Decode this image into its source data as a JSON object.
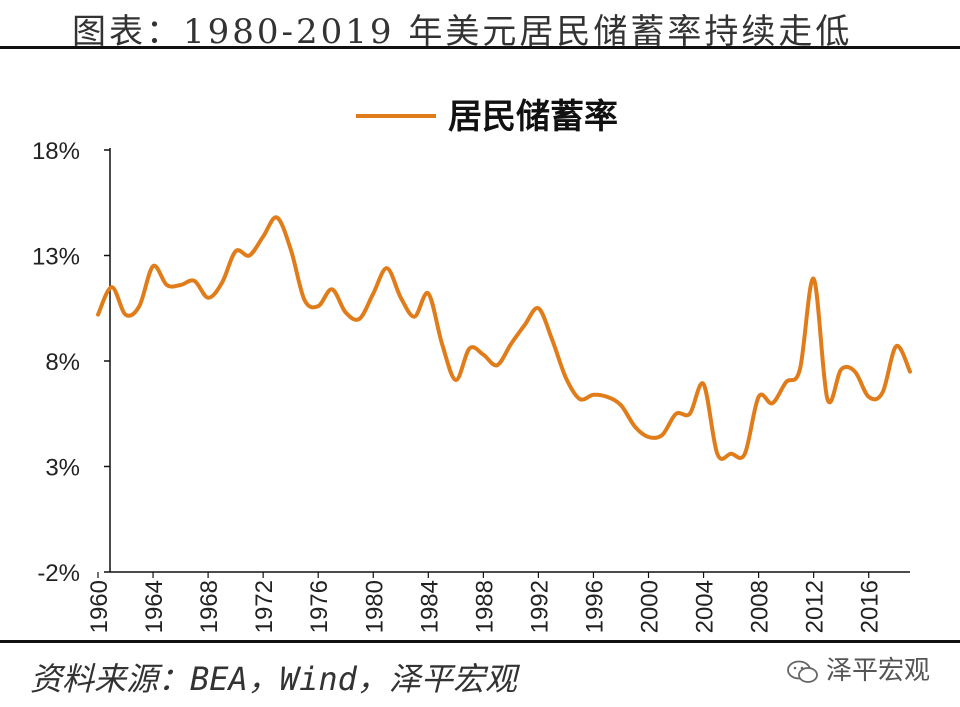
{
  "title": "图表：1980-2019 年美元居民储蓄率持续走低",
  "source": "资料来源：BEA，Wind，泽平宏观",
  "watermark": "泽平宏观",
  "colors": {
    "series": "#E07D1A",
    "text": "#222222",
    "axis": "#111111"
  },
  "chart_data": {
    "type": "line",
    "title": "",
    "xlabel": "",
    "ylabel": "",
    "ylim": [
      -2,
      18
    ],
    "xlim": [
      1960,
      2019
    ],
    "grid": false,
    "legend": "top-center",
    "y_ticks": [
      {
        "value": 18,
        "label": "18%"
      },
      {
        "value": 13,
        "label": "13%"
      },
      {
        "value": 8,
        "label": "8%"
      },
      {
        "value": 3,
        "label": "3%"
      },
      {
        "value": -2,
        "label": "-2%"
      }
    ],
    "x_ticks": [
      "1960",
      "1964",
      "1968",
      "1972",
      "1976",
      "1980",
      "1984",
      "1988",
      "1992",
      "1996",
      "2000",
      "2004",
      "2008",
      "2012",
      "2016"
    ],
    "series": [
      {
        "name": "居民储蓄率",
        "color": "#E07D1A",
        "x": [
          1960,
          1961,
          1962,
          1963,
          1964,
          1965,
          1966,
          1967,
          1968,
          1969,
          1970,
          1971,
          1972,
          1973,
          1974,
          1975,
          1976,
          1977,
          1978,
          1979,
          1980,
          1981,
          1982,
          1983,
          1984,
          1985,
          1986,
          1987,
          1988,
          1989,
          1990,
          1991,
          1992,
          1993,
          1994,
          1995,
          1996,
          1997,
          1998,
          1999,
          2000,
          2001,
          2002,
          2003,
          2004,
          2005,
          2006,
          2007,
          2008,
          2009,
          2010,
          2011,
          2012,
          2013,
          2014,
          2015,
          2016,
          2017,
          2018,
          2019
        ],
        "values": [
          10.2,
          11.5,
          10.2,
          10.6,
          12.5,
          11.6,
          11.6,
          11.8,
          11.0,
          11.7,
          13.2,
          13.0,
          13.9,
          14.8,
          13.3,
          10.9,
          10.6,
          11.4,
          10.3,
          10.0,
          11.2,
          12.4,
          11.0,
          10.1,
          11.2,
          8.8,
          7.1,
          8.6,
          8.3,
          7.8,
          8.8,
          9.7,
          10.5,
          9.0,
          7.2,
          6.2,
          6.4,
          6.3,
          5.9,
          4.9,
          4.4,
          4.5,
          5.5,
          5.5,
          6.9,
          3.6,
          3.6,
          3.6,
          6.3,
          6.0,
          7.0,
          7.6,
          11.9,
          6.2,
          7.6,
          7.5,
          6.3,
          6.5,
          8.7,
          7.5
        ]
      }
    ]
  }
}
